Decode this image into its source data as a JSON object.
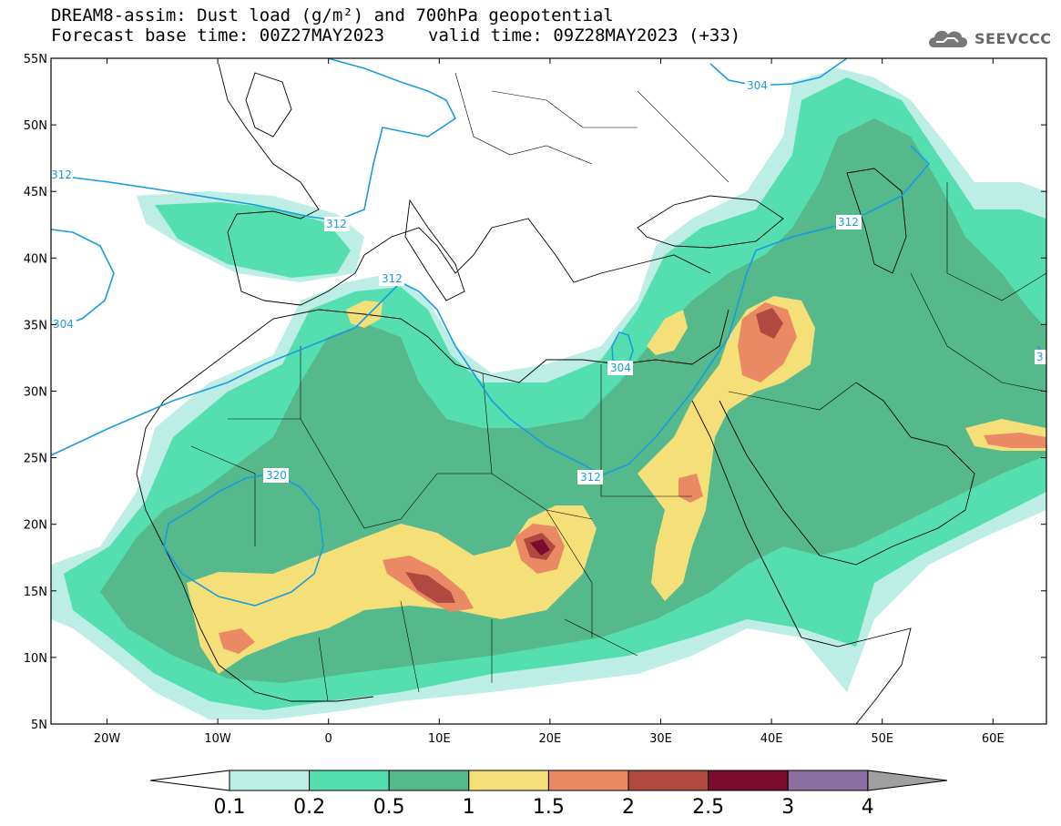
{
  "title": {
    "line1": "DREAM8-assim: Dust load (g/m²) and 700hPa geopotential",
    "base_time": "Forecast base time: 00Z27MAY2023",
    "valid_time": "valid time: 09Z28MAY2023 (+33)"
  },
  "logo": {
    "text": "SEEVCCC",
    "icon": "cloud-icon"
  },
  "axes": {
    "lat_labels": [
      "55N",
      "50N",
      "45N",
      "40N",
      "35N",
      "30N",
      "25N",
      "20N",
      "15N",
      "10N",
      "5N"
    ],
    "lon_labels": [
      "20W",
      "10W",
      "0",
      "10E",
      "20E",
      "30E",
      "40E",
      "50E",
      "60E"
    ]
  },
  "contour_labels": [
    "304",
    "312",
    "312",
    "312",
    "304",
    "312",
    "320",
    "304",
    "312",
    "3"
  ],
  "colorbar": {
    "labels": [
      "0.1",
      "0.2",
      "0.5",
      "1",
      "1.5",
      "2",
      "2.5",
      "3",
      "4"
    ],
    "colors": [
      "#ffffff",
      "#bdeee6",
      "#55dfb0",
      "#55b98c",
      "#f5df78",
      "#ea8a64",
      "#b04a40",
      "#7a0c2e",
      "#8a6fa0",
      "#a0a0a0"
    ]
  },
  "legend_colors": {
    "c01_02": "#bdeee6",
    "c02_05": "#55dfb0",
    "c05_1": "#55b98c",
    "c1_15": "#f5df78",
    "c15_2": "#ea8a64",
    "c2_25": "#b04a40",
    "c25_3": "#7a0c2e",
    "contour": "#1a9be0"
  }
}
